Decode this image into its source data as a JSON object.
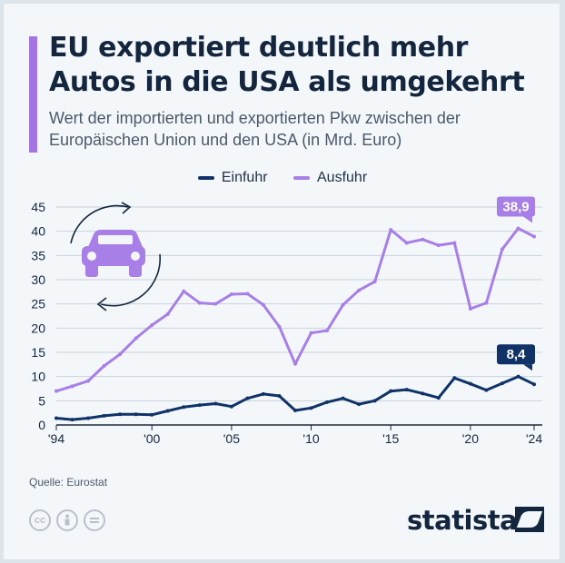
{
  "header": {
    "title": "EU exportiert deutlich mehr Autos in die USA als umgekehrt",
    "subtitle": "Wert der importierten und exportierten Pkw zwischen der Europäischen Union und den USA (in Mrd. Euro)"
  },
  "footer": {
    "source": "Quelle: Eurostat",
    "brand": "statista",
    "license_icons": [
      "cc-icon",
      "attribution-icon",
      "no-derivatives-icon"
    ]
  },
  "colors": {
    "einfuhr": "#0f3366",
    "ausfuhr": "#a87fe6",
    "accent": "#a275e3",
    "grid": "#c9d2db",
    "text": "#13263d"
  },
  "illustration": "car-with-cycle-arrows-icon",
  "chart_data": {
    "type": "line",
    "title": "EU exportiert deutlich mehr Autos in die USA als umgekehrt",
    "ylim": [
      0,
      45
    ],
    "yticks": [
      0,
      5,
      10,
      15,
      20,
      25,
      30,
      35,
      40,
      45
    ],
    "xlim": [
      1994,
      2024
    ],
    "xticks": [
      {
        "year": 1994,
        "label": "'94"
      },
      {
        "year": 2000,
        "label": "'00"
      },
      {
        "year": 2005,
        "label": "'05"
      },
      {
        "year": 2010,
        "label": "'10"
      },
      {
        "year": 2015,
        "label": "'15"
      },
      {
        "year": 2020,
        "label": "'20"
      },
      {
        "year": 2024,
        "label": "'24"
      }
    ],
    "grid": true,
    "legend_position": "top-center",
    "x": [
      1994,
      1995,
      1996,
      1997,
      1998,
      1999,
      2000,
      2001,
      2002,
      2003,
      2004,
      2005,
      2006,
      2007,
      2008,
      2009,
      2010,
      2011,
      2012,
      2013,
      2014,
      2015,
      2016,
      2017,
      2018,
      2019,
      2020,
      2021,
      2022,
      2023,
      2024
    ],
    "series": [
      {
        "name": "Einfuhr",
        "color": "#0f3366",
        "values": [
          1.4,
          1.1,
          1.4,
          1.9,
          2.2,
          2.2,
          2.1,
          2.9,
          3.7,
          4.1,
          4.4,
          3.8,
          5.5,
          6.4,
          6.0,
          3.0,
          3.5,
          4.7,
          5.5,
          4.3,
          5.0,
          7.0,
          7.3,
          6.5,
          5.6,
          9.7,
          8.5,
          7.2,
          8.6,
          10.0,
          8.4
        ],
        "end_label": "8,4"
      },
      {
        "name": "Ausfuhr",
        "color": "#a87fe6",
        "values": [
          7.0,
          8.0,
          9.1,
          12.2,
          14.6,
          17.9,
          20.6,
          22.9,
          27.6,
          25.2,
          25.0,
          27.0,
          27.1,
          24.8,
          20.3,
          12.6,
          19.0,
          19.5,
          24.8,
          27.8,
          29.6,
          40.3,
          37.6,
          38.3,
          37.1,
          37.6,
          24.0,
          25.2,
          36.3,
          40.6,
          38.9
        ],
        "end_label": "38,9"
      }
    ]
  }
}
